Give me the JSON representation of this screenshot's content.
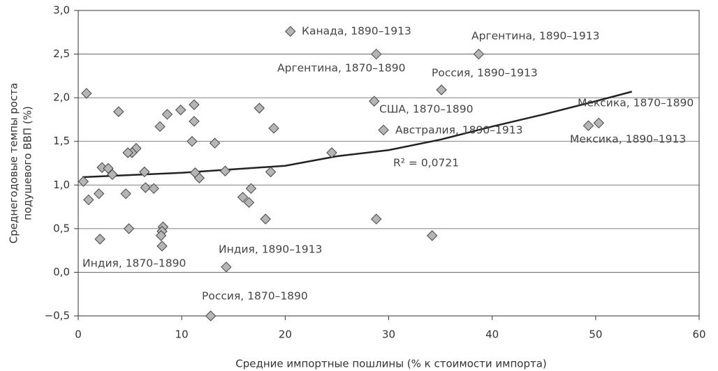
{
  "chart_data": {
    "type": "scatter",
    "x_label": "Средние импортные пошлины (% к стоимости импорта)",
    "y_label": [
      "Среднегодовые темпы роста",
      "подушевого ВВП (%)"
    ],
    "xlim": [
      0,
      60
    ],
    "xticks": [
      0,
      10,
      20,
      30,
      40,
      50,
      60
    ],
    "ylim": [
      -0.5,
      3.0
    ],
    "yticks": [
      {
        "value": -0.5,
        "label": "−0,5"
      },
      {
        "value": 0,
        "label": "0,0"
      },
      {
        "value": 0.5,
        "label": "0,5"
      },
      {
        "value": 1.0,
        "label": "1,0"
      },
      {
        "value": 1.5,
        "label": "1,5"
      },
      {
        "value": 2.0,
        "label": "2,0"
      },
      {
        "value": 2.5,
        "label": "2,5"
      },
      {
        "value": 3.0,
        "label": "3,0"
      }
    ],
    "grid": true,
    "color": "#b5b5b5",
    "x": [
      20.5,
      28.8,
      38.7,
      35.1,
      0.8,
      3.9,
      11.2,
      9.9,
      8.6,
      7.9,
      11.2,
      11.0,
      13.2,
      5.6,
      5.2,
      4.8,
      2.3,
      2.9,
      3.3,
      6.4,
      11.3,
      11.7,
      14.2,
      18.6,
      24.5,
      28.6,
      29.5,
      18.9,
      17.5,
      0.5,
      1.0,
      2.0,
      4.6,
      6.5,
      7.3,
      16.7,
      15.9,
      16.5,
      18.1,
      28.8,
      34.2,
      4.9,
      8.2,
      8.1,
      8.0,
      8.1,
      2.1,
      14.3,
      12.8,
      49.3,
      50.3
    ],
    "values": [
      2.76,
      2.5,
      2.5,
      2.09,
      2.05,
      1.84,
      1.92,
      1.86,
      1.81,
      1.67,
      1.73,
      1.5,
      1.48,
      1.42,
      1.37,
      1.37,
      1.2,
      1.19,
      1.12,
      1.15,
      1.14,
      1.08,
      1.16,
      1.15,
      1.37,
      1.96,
      1.63,
      1.65,
      1.88,
      1.04,
      0.83,
      0.9,
      0.9,
      0.97,
      0.96,
      0.96,
      0.86,
      0.8,
      0.61,
      0.61,
      0.42,
      0.5,
      0.52,
      0.47,
      0.42,
      0.3,
      0.38,
      0.06,
      -0.5,
      1.68,
      1.71
    ],
    "trendline": {
      "x": [
        0.4,
        10,
        20,
        25,
        30,
        35,
        40,
        45,
        50,
        53.5
      ],
      "values": [
        1.09,
        1.14,
        1.22,
        1.33,
        1.4,
        1.52,
        1.67,
        1.81,
        1.96,
        2.07
      ],
      "label": "R² = 0,0721"
    },
    "annotations": [
      "Канада, 1890–1913",
      "Аргентина, 1870–1890",
      "Аргентина, 1890–1913",
      "Россия, 1890–1913",
      "США, 1870–1890",
      "Австралия, 1890–1913",
      "Мексика, 1870–1890",
      "Мексика, 1890–1913",
      "Индия, 1870–1890",
      "Индия, 1890–1913",
      "Россия, 1870–1890"
    ]
  }
}
